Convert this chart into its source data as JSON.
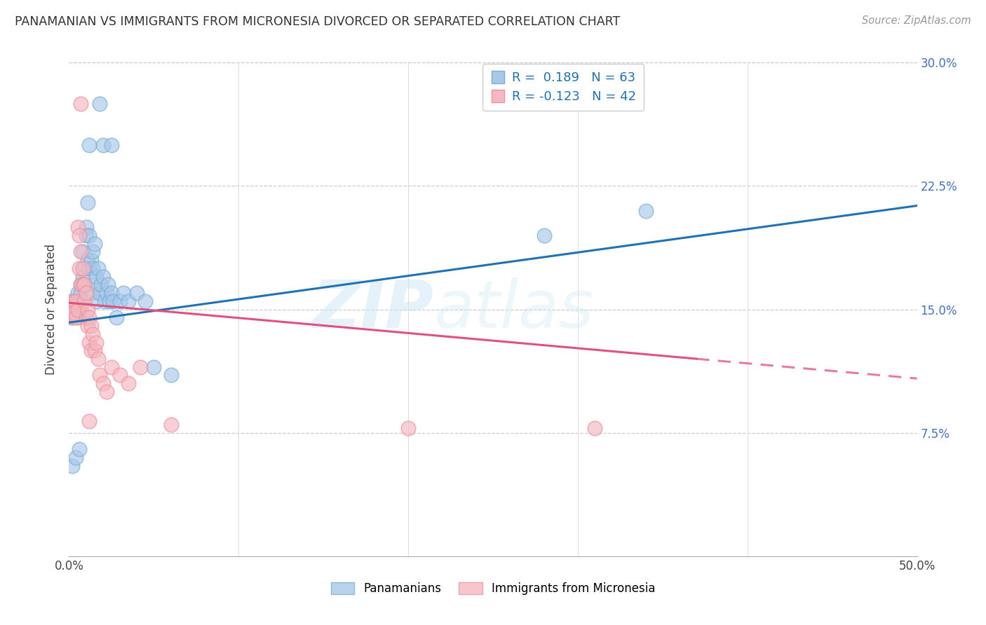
{
  "title": "PANAMANIAN VS IMMIGRANTS FROM MICRONESIA DIVORCED OR SEPARATED CORRELATION CHART",
  "source": "Source: ZipAtlas.com",
  "ylabel": "Divorced or Separated",
  "xlim": [
    0.0,
    0.5
  ],
  "ylim": [
    0.0,
    0.3
  ],
  "xticks": [
    0.0,
    0.1,
    0.2,
    0.3,
    0.4,
    0.5
  ],
  "xticklabels": [
    "0.0%",
    "",
    "",
    "",
    "",
    "50.0%"
  ],
  "yticks_right": [
    0.075,
    0.15,
    0.225,
    0.3
  ],
  "ytick_labels_right": [
    "7.5%",
    "15.0%",
    "22.5%",
    "30.0%"
  ],
  "watermark_zip": "ZIP",
  "watermark_atlas": "atlas",
  "legend_label1": "Panamanians",
  "legend_label2": "Immigrants from Micronesia",
  "blue_color": "#a8c8e8",
  "blue_edge_color": "#7aadda",
  "pink_color": "#f4b8c0",
  "pink_edge_color": "#f090a0",
  "blue_line_color": "#2171b5",
  "pink_line_color": "#e05080",
  "blue_dots": [
    [
      0.001,
      0.155
    ],
    [
      0.001,
      0.148
    ],
    [
      0.002,
      0.152
    ],
    [
      0.002,
      0.148
    ],
    [
      0.002,
      0.145
    ],
    [
      0.003,
      0.15
    ],
    [
      0.003,
      0.155
    ],
    [
      0.003,
      0.148
    ],
    [
      0.004,
      0.155
    ],
    [
      0.004,
      0.148
    ],
    [
      0.005,
      0.152
    ],
    [
      0.005,
      0.145
    ],
    [
      0.005,
      0.16
    ],
    [
      0.006,
      0.148
    ],
    [
      0.006,
      0.155
    ],
    [
      0.007,
      0.15
    ],
    [
      0.007,
      0.165
    ],
    [
      0.007,
      0.16
    ],
    [
      0.008,
      0.17
    ],
    [
      0.008,
      0.185
    ],
    [
      0.009,
      0.175
    ],
    [
      0.009,
      0.165
    ],
    [
      0.01,
      0.2
    ],
    [
      0.01,
      0.195
    ],
    [
      0.011,
      0.215
    ],
    [
      0.011,
      0.18
    ],
    [
      0.012,
      0.195
    ],
    [
      0.012,
      0.175
    ],
    [
      0.013,
      0.18
    ],
    [
      0.013,
      0.16
    ],
    [
      0.014,
      0.185
    ],
    [
      0.014,
      0.175
    ],
    [
      0.015,
      0.19
    ],
    [
      0.015,
      0.165
    ],
    [
      0.016,
      0.17
    ],
    [
      0.016,
      0.155
    ],
    [
      0.017,
      0.175
    ],
    [
      0.018,
      0.16
    ],
    [
      0.019,
      0.165
    ],
    [
      0.02,
      0.17
    ],
    [
      0.021,
      0.155
    ],
    [
      0.022,
      0.16
    ],
    [
      0.023,
      0.165
    ],
    [
      0.024,
      0.155
    ],
    [
      0.025,
      0.16
    ],
    [
      0.026,
      0.155
    ],
    [
      0.028,
      0.145
    ],
    [
      0.03,
      0.155
    ],
    [
      0.032,
      0.16
    ],
    [
      0.035,
      0.155
    ],
    [
      0.04,
      0.16
    ],
    [
      0.045,
      0.155
    ],
    [
      0.05,
      0.115
    ],
    [
      0.06,
      0.11
    ],
    [
      0.002,
      0.055
    ],
    [
      0.004,
      0.06
    ],
    [
      0.006,
      0.065
    ],
    [
      0.012,
      0.25
    ],
    [
      0.018,
      0.275
    ],
    [
      0.02,
      0.25
    ],
    [
      0.025,
      0.25
    ],
    [
      0.28,
      0.195
    ],
    [
      0.34,
      0.21
    ]
  ],
  "pink_dots": [
    [
      0.001,
      0.15
    ],
    [
      0.001,
      0.145
    ],
    [
      0.002,
      0.155
    ],
    [
      0.002,
      0.148
    ],
    [
      0.003,
      0.152
    ],
    [
      0.003,
      0.148
    ],
    [
      0.004,
      0.155
    ],
    [
      0.004,
      0.145
    ],
    [
      0.005,
      0.15
    ],
    [
      0.005,
      0.2
    ],
    [
      0.006,
      0.195
    ],
    [
      0.006,
      0.175
    ],
    [
      0.007,
      0.185
    ],
    [
      0.007,
      0.165
    ],
    [
      0.008,
      0.175
    ],
    [
      0.008,
      0.165
    ],
    [
      0.009,
      0.165
    ],
    [
      0.009,
      0.155
    ],
    [
      0.01,
      0.16
    ],
    [
      0.01,
      0.145
    ],
    [
      0.011,
      0.15
    ],
    [
      0.011,
      0.14
    ],
    [
      0.012,
      0.145
    ],
    [
      0.012,
      0.13
    ],
    [
      0.013,
      0.14
    ],
    [
      0.013,
      0.125
    ],
    [
      0.014,
      0.135
    ],
    [
      0.015,
      0.125
    ],
    [
      0.016,
      0.13
    ],
    [
      0.017,
      0.12
    ],
    [
      0.018,
      0.11
    ],
    [
      0.02,
      0.105
    ],
    [
      0.022,
      0.1
    ],
    [
      0.025,
      0.115
    ],
    [
      0.03,
      0.11
    ],
    [
      0.035,
      0.105
    ],
    [
      0.042,
      0.115
    ],
    [
      0.06,
      0.08
    ],
    [
      0.007,
      0.275
    ],
    [
      0.012,
      0.082
    ],
    [
      0.31,
      0.078
    ],
    [
      0.2,
      0.078
    ]
  ],
  "blue_trendline": {
    "x_start": 0.0,
    "y_start": 0.142,
    "x_end": 0.5,
    "y_end": 0.213
  },
  "pink_trendline": {
    "x_start": 0.0,
    "y_start": 0.154,
    "x_end": 0.5,
    "y_end": 0.108
  },
  "pink_trendline_solid_end": 0.37
}
